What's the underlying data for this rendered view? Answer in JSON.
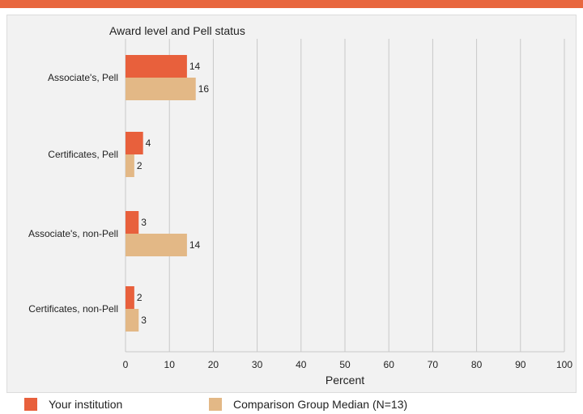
{
  "colors": {
    "accent_bar": "#e8663e",
    "series_institution": "#e8603c",
    "series_comparison": "#e3b886",
    "grid": "#c8c8c8",
    "panel_bg": "#f2f2f2"
  },
  "chart_data": {
    "type": "bar",
    "orientation": "horizontal",
    "title": "Award level and Pell status",
    "xlabel": "Percent",
    "ylabel": "",
    "xlim": [
      0,
      100
    ],
    "x_ticks": [
      0,
      10,
      20,
      30,
      40,
      50,
      60,
      70,
      80,
      90,
      100
    ],
    "grid": true,
    "legend_position": "bottom",
    "categories": [
      "Associate's, Pell",
      "Certificates, Pell",
      "Associate's, non-Pell",
      "Certificates, non-Pell"
    ],
    "series": [
      {
        "name": "Your institution",
        "values": [
          14,
          4,
          3,
          2
        ],
        "color": "#e8603c"
      },
      {
        "name": "Comparison Group Median (N=13)",
        "values": [
          16,
          2,
          14,
          3
        ],
        "color": "#e3b886"
      }
    ]
  }
}
